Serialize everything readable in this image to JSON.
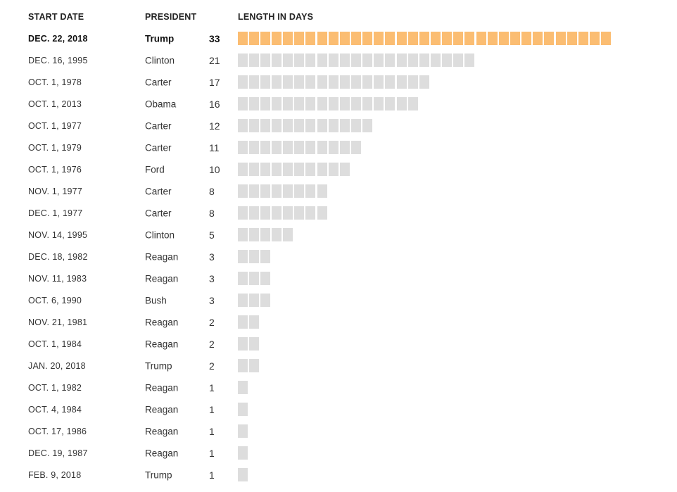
{
  "headers": {
    "start_date": "START DATE",
    "president": "PRESIDENT",
    "length": "LENGTH IN DAYS"
  },
  "colors": {
    "highlight": "#fbbd72",
    "default": "#dddddd"
  },
  "chart_data": {
    "type": "bar",
    "orientation": "horizontal",
    "unit_note": "one block per day, grouped in weeks of 7",
    "rows": [
      {
        "start_date": "DEC. 22, 2018",
        "president": "Trump",
        "days": 33,
        "highlight": true
      },
      {
        "start_date": "DEC. 16, 1995",
        "president": "Clinton",
        "days": 21
      },
      {
        "start_date": "OCT. 1, 1978",
        "president": "Carter",
        "days": 17
      },
      {
        "start_date": "OCT. 1, 2013",
        "president": "Obama",
        "days": 16
      },
      {
        "start_date": "OCT. 1, 1977",
        "president": "Carter",
        "days": 12
      },
      {
        "start_date": "OCT. 1, 1979",
        "president": "Carter",
        "days": 11
      },
      {
        "start_date": "OCT. 1, 1976",
        "president": "Ford",
        "days": 10
      },
      {
        "start_date": "NOV. 1, 1977",
        "president": "Carter",
        "days": 8
      },
      {
        "start_date": "DEC. 1, 1977",
        "president": "Carter",
        "days": 8
      },
      {
        "start_date": "NOV. 14, 1995",
        "president": "Clinton",
        "days": 5
      },
      {
        "start_date": "DEC. 18, 1982",
        "president": "Reagan",
        "days": 3
      },
      {
        "start_date": "NOV. 11, 1983",
        "president": "Reagan",
        "days": 3
      },
      {
        "start_date": "OCT. 6, 1990",
        "president": "Bush",
        "days": 3
      },
      {
        "start_date": "NOV. 21, 1981",
        "president": "Reagan",
        "days": 2
      },
      {
        "start_date": "OCT. 1, 1984",
        "president": "Reagan",
        "days": 2
      },
      {
        "start_date": "JAN. 20, 2018",
        "president": "Trump",
        "days": 2
      },
      {
        "start_date": "OCT. 1, 1982",
        "president": "Reagan",
        "days": 1
      },
      {
        "start_date": "OCT. 4, 1984",
        "president": "Reagan",
        "days": 1
      },
      {
        "start_date": "OCT. 17, 1986",
        "president": "Reagan",
        "days": 1
      },
      {
        "start_date": "DEC. 19, 1987",
        "president": "Reagan",
        "days": 1
      },
      {
        "start_date": "FEB. 9, 2018",
        "president": "Trump",
        "days": 1
      }
    ]
  }
}
